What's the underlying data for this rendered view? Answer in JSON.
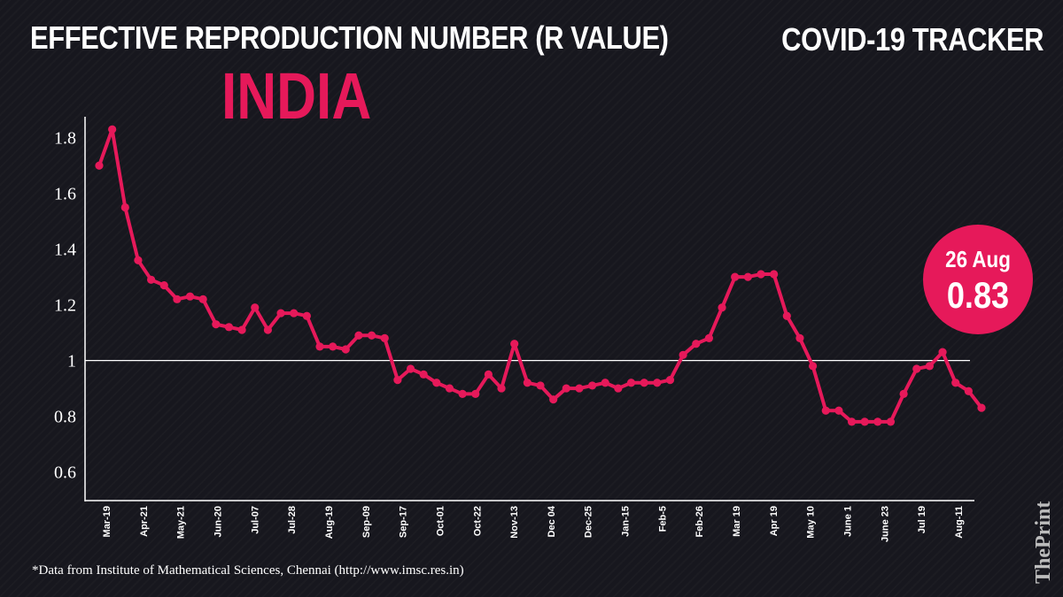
{
  "header": {
    "title": "EFFECTIVE REPRODUCTION NUMBER (R VALUE)",
    "tracker": "COVID-19 TRACKER",
    "country": "INDIA"
  },
  "callout": {
    "date": "26 Aug",
    "value": "0.83"
  },
  "footer": {
    "source": "*Data from Institute of Mathematical Sciences, Chennai (http://www.imsc.res.in)",
    "brand": "ThePrint"
  },
  "colors": {
    "accent": "#e6195a",
    "background": "#17171e",
    "text": "#ffffff"
  },
  "chart_data": {
    "type": "line",
    "title": "",
    "xlabel": "",
    "ylabel": "",
    "ylim": [
      0.5,
      1.85
    ],
    "yticks": [
      "0.6",
      "0.8",
      "1",
      "1.2",
      "1.4",
      "1.6",
      "1.8"
    ],
    "reference_line": 1,
    "x_tick_labels": [
      "Mar-19",
      "Apr-21",
      "May-21",
      "Jun-20",
      "Jul-07",
      "Jul-28",
      "Aug-19",
      "Sep-09",
      "Sep-17",
      "Oct-01",
      "Oct-22",
      "Nov-13",
      "Dec 04",
      "Dec-25",
      "Jan-15",
      "Feb-5",
      "Feb-26",
      "Mar 19",
      "Apr 19",
      "May 10",
      "June 1",
      "June 23",
      "Jul 19",
      "Aug-11"
    ],
    "series": [
      {
        "values": [
          1.7,
          1.83,
          1.55,
          1.36,
          1.29,
          1.27,
          1.22,
          1.23,
          1.22,
          1.13,
          1.12,
          1.11,
          1.19,
          1.11,
          1.17,
          1.17,
          1.16,
          1.05,
          1.05,
          1.04,
          1.09,
          1.09,
          1.08,
          0.93,
          0.97,
          0.95,
          0.92,
          0.9,
          0.88,
          0.88,
          0.95,
          0.9,
          1.06,
          0.92,
          0.91,
          0.86,
          0.9,
          0.9,
          0.91,
          0.92,
          0.9,
          0.92,
          0.92,
          0.92,
          0.93,
          1.02,
          1.06,
          1.08,
          1.19,
          1.3,
          1.3,
          1.31,
          1.31,
          1.16,
          1.08,
          0.98,
          0.82,
          0.82,
          0.78,
          0.78,
          0.78,
          0.78,
          0.88,
          0.97,
          0.98,
          1.03,
          0.92,
          0.89,
          0.83
        ]
      }
    ],
    "grid": false
  }
}
